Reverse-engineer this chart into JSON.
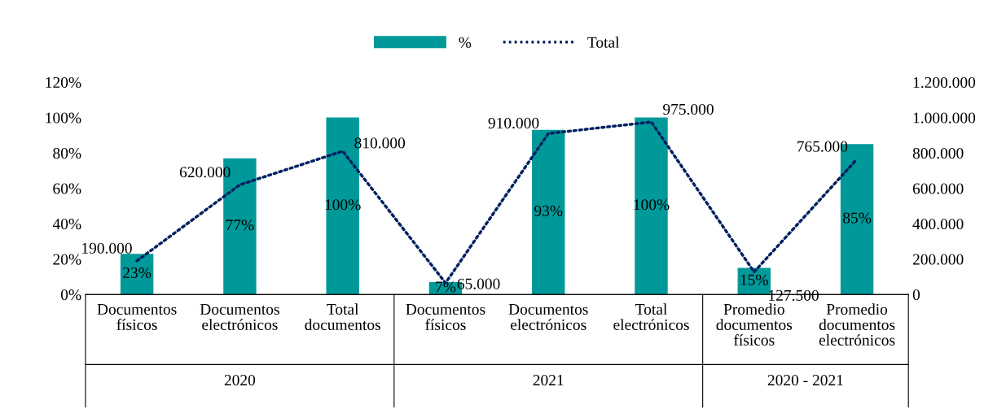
{
  "chart_data": {
    "type": "bar",
    "categories": [
      "Documentos\nfísicos",
      "Documentos\nelectrónicos",
      "Total\ndocumentos",
      "Documentos\nfísicos",
      "Documentos\nelectrónicos",
      "Total\nelectrónicos",
      "Promedio\ndocumentos\nfísicos",
      "Promedio\ndocumentos\nelectrónicos"
    ],
    "series": [
      {
        "name": "%",
        "color": "#009999",
        "values": [
          23,
          77,
          100,
          7,
          93,
          100,
          15,
          85
        ],
        "value_labels": [
          "23%",
          "77%",
          "100%",
          "7%",
          "93%",
          "100%",
          "15%",
          "85%"
        ]
      },
      {
        "name": "Total",
        "type": "line",
        "axis": "y2",
        "color": "#002060",
        "line_style": "dotted",
        "values": [
          190000,
          620000,
          810000,
          65000,
          910000,
          975000,
          127500,
          765000
        ],
        "value_labels": [
          "190.000",
          "620.000",
          "810.000",
          "65.000",
          "910.000",
          "975.000",
          "127.500",
          "765.000"
        ]
      }
    ],
    "annotations": [
      "2020",
      "2021",
      "2020 - 2021"
    ],
    "ylim": [
      0,
      120
    ],
    "yticks": [
      {
        "value": 0,
        "label": "0%"
      },
      {
        "value": 20,
        "label": "20%"
      },
      {
        "value": 40,
        "label": "40%"
      },
      {
        "value": 60,
        "label": "60%"
      },
      {
        "value": 80,
        "label": "80%"
      },
      {
        "value": 100,
        "label": "100%"
      },
      {
        "value": 120,
        "label": "120%"
      }
    ],
    "y2lim": [
      0,
      1200000
    ],
    "y2ticks": [
      0,
      {
        "value": 200000,
        "label": "200.000"
      },
      {
        "value": 400000,
        "label": "400.000"
      },
      {
        "value": 600000,
        "label": "600.000"
      },
      {
        "value": 800000,
        "label": "800.000"
      },
      {
        "value": 1000000,
        "label": "1.000.000"
      },
      {
        "value": 1200000,
        "label": "1.200.000"
      }
    ],
    "grid": false,
    "legend": "top"
  }
}
